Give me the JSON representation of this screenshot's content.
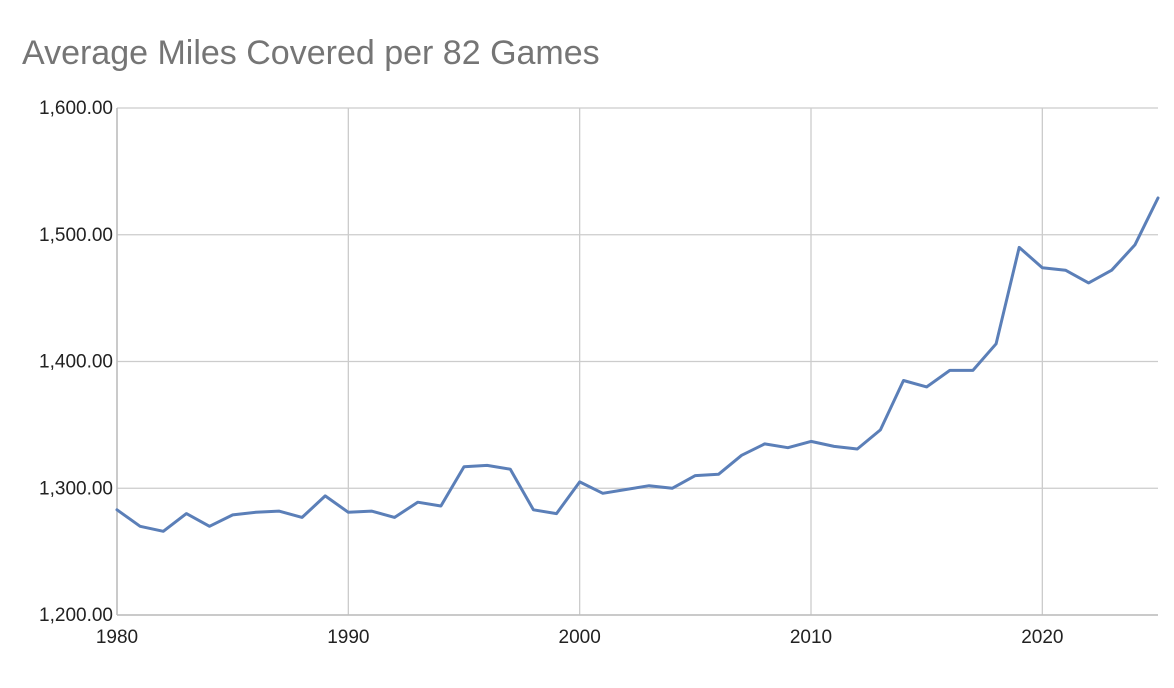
{
  "chart_data": {
    "type": "line",
    "title": "Average Miles Covered per 82 Games",
    "xlabel": "",
    "ylabel": "",
    "xlim": [
      1980,
      2025
    ],
    "ylim": [
      1200,
      1600
    ],
    "yticks": [
      1200,
      1300,
      1400,
      1500,
      1600
    ],
    "ytick_labels": [
      "1,200.00",
      "1,300.00",
      "1,400.00",
      "1,500.00",
      "1,600.00"
    ],
    "xticks": [
      1980,
      1990,
      2000,
      2010,
      2020
    ],
    "xtick_labels": [
      "1980",
      "1990",
      "2000",
      "2010",
      "2020"
    ],
    "grid": true,
    "legend": "none",
    "line_color": "#5b7fb8",
    "series": [
      {
        "x": [
          1980,
          1981,
          1982,
          1983,
          1984,
          1985,
          1986,
          1987,
          1988,
          1989,
          1990,
          1991,
          1992,
          1993,
          1994,
          1995,
          1996,
          1997,
          1998,
          1999,
          2000,
          2001,
          2002,
          2003,
          2004,
          2005,
          2006,
          2007,
          2008,
          2009,
          2010,
          2011,
          2012,
          2013,
          2014,
          2015,
          2016,
          2017,
          2018,
          2019,
          2020,
          2021,
          2022,
          2023,
          2024,
          2025
        ],
        "values": [
          1283,
          1270,
          1266,
          1280,
          1270,
          1279,
          1281,
          1282,
          1277,
          1294,
          1281,
          1282,
          1277,
          1289,
          1286,
          1317,
          1318,
          1315,
          1283,
          1280,
          1305,
          1296,
          1299,
          1302,
          1300,
          1310,
          1311,
          1326,
          1335,
          1332,
          1337,
          1333,
          1331,
          1346,
          1385,
          1380,
          1393,
          1393,
          1414,
          1490,
          1474,
          1472,
          1462,
          1472,
          1492,
          1529
        ]
      }
    ]
  }
}
